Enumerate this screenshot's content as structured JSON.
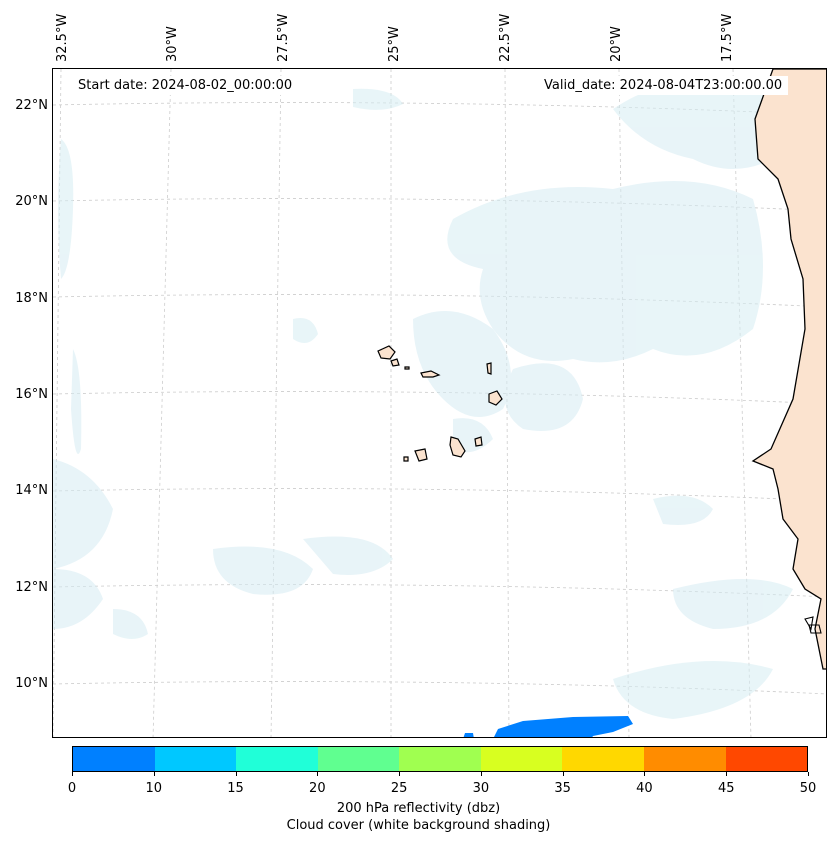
{
  "map": {
    "lon_labels": [
      "32.5°W",
      "30°W",
      "27.5°W",
      "25°W",
      "22.5°W",
      "20°W",
      "17.5°W"
    ],
    "lat_labels": [
      "22°N",
      "20°N",
      "18°N",
      "16°N",
      "14°N",
      "12°N",
      "10°N"
    ],
    "start_date": "Start date: 2024-08-02_00:00:00",
    "valid_date": "Valid_date: 2024-08-04T23:00:00.00"
  },
  "colorbar": {
    "ticks": [
      "0",
      "10",
      "15",
      "20",
      "25",
      "30",
      "35",
      "40",
      "45",
      "50"
    ],
    "colors": [
      "#0080ff",
      "#00c8ff",
      "#20ffd8",
      "#60ff90",
      "#a0ff50",
      "#d8ff20",
      "#ffd800",
      "#ff8c00",
      "#ff4800"
    ],
    "label_line1": "200 hPa reflectivity (dbz)",
    "label_line2": "Cloud cover (white background shading)"
  },
  "colors": {
    "cloud": "#d6ecf3",
    "land": "#fbe3cf",
    "coast": "#000000",
    "grid": "#cccccc",
    "radar": "#0080ff"
  }
}
